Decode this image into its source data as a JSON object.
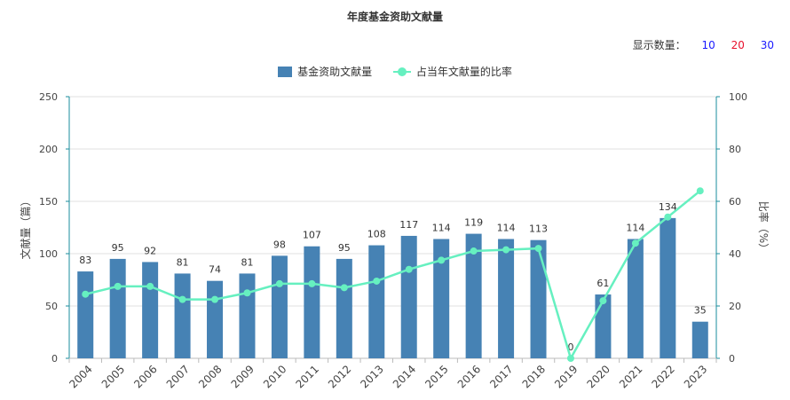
{
  "title": "年度基金资助文献量",
  "display_count": {
    "label": "显示数量：",
    "options": [
      {
        "text": "10",
        "color": "#1a1aff"
      },
      {
        "text": "20",
        "color": "#e8112d"
      },
      {
        "text": "30",
        "color": "#1a1aff"
      }
    ]
  },
  "colors": {
    "bar": "#4682B4",
    "line": "#66F0C0",
    "axis": "#1a8c9c",
    "grid": "#e0e0e0"
  },
  "chart_data": {
    "type": "bar",
    "title": "年度基金资助文献量",
    "categories": [
      "2004",
      "2005",
      "2006",
      "2007",
      "2008",
      "2009",
      "2010",
      "2011",
      "2012",
      "2013",
      "2014",
      "2015",
      "2016",
      "2017",
      "2018",
      "2019",
      "2020",
      "2021",
      "2022",
      "2023"
    ],
    "series": [
      {
        "name": "基金资助文献量",
        "type": "bar",
        "axis": "left",
        "values": [
          83,
          95,
          92,
          81,
          74,
          81,
          98,
          107,
          95,
          108,
          117,
          114,
          119,
          114,
          113,
          0,
          61,
          114,
          134,
          35
        ]
      },
      {
        "name": "占当年文献量的比率",
        "type": "line",
        "axis": "right",
        "values": [
          24.5,
          27.5,
          27.5,
          22.5,
          22.5,
          25,
          28.5,
          28.5,
          27,
          29.5,
          34,
          37.5,
          41,
          41.5,
          42,
          0,
          22,
          44,
          54,
          64
        ]
      }
    ],
    "ylabel": "文献量（篇）",
    "y2label": "比率（%）",
    "ylim": [
      0,
      250
    ],
    "y2lim": [
      0,
      100
    ],
    "yticks": [
      0,
      50,
      100,
      150,
      200,
      250
    ],
    "y2ticks": [
      0,
      20,
      40,
      60,
      80,
      100
    ],
    "grid": true,
    "legend_position": "top-center"
  }
}
